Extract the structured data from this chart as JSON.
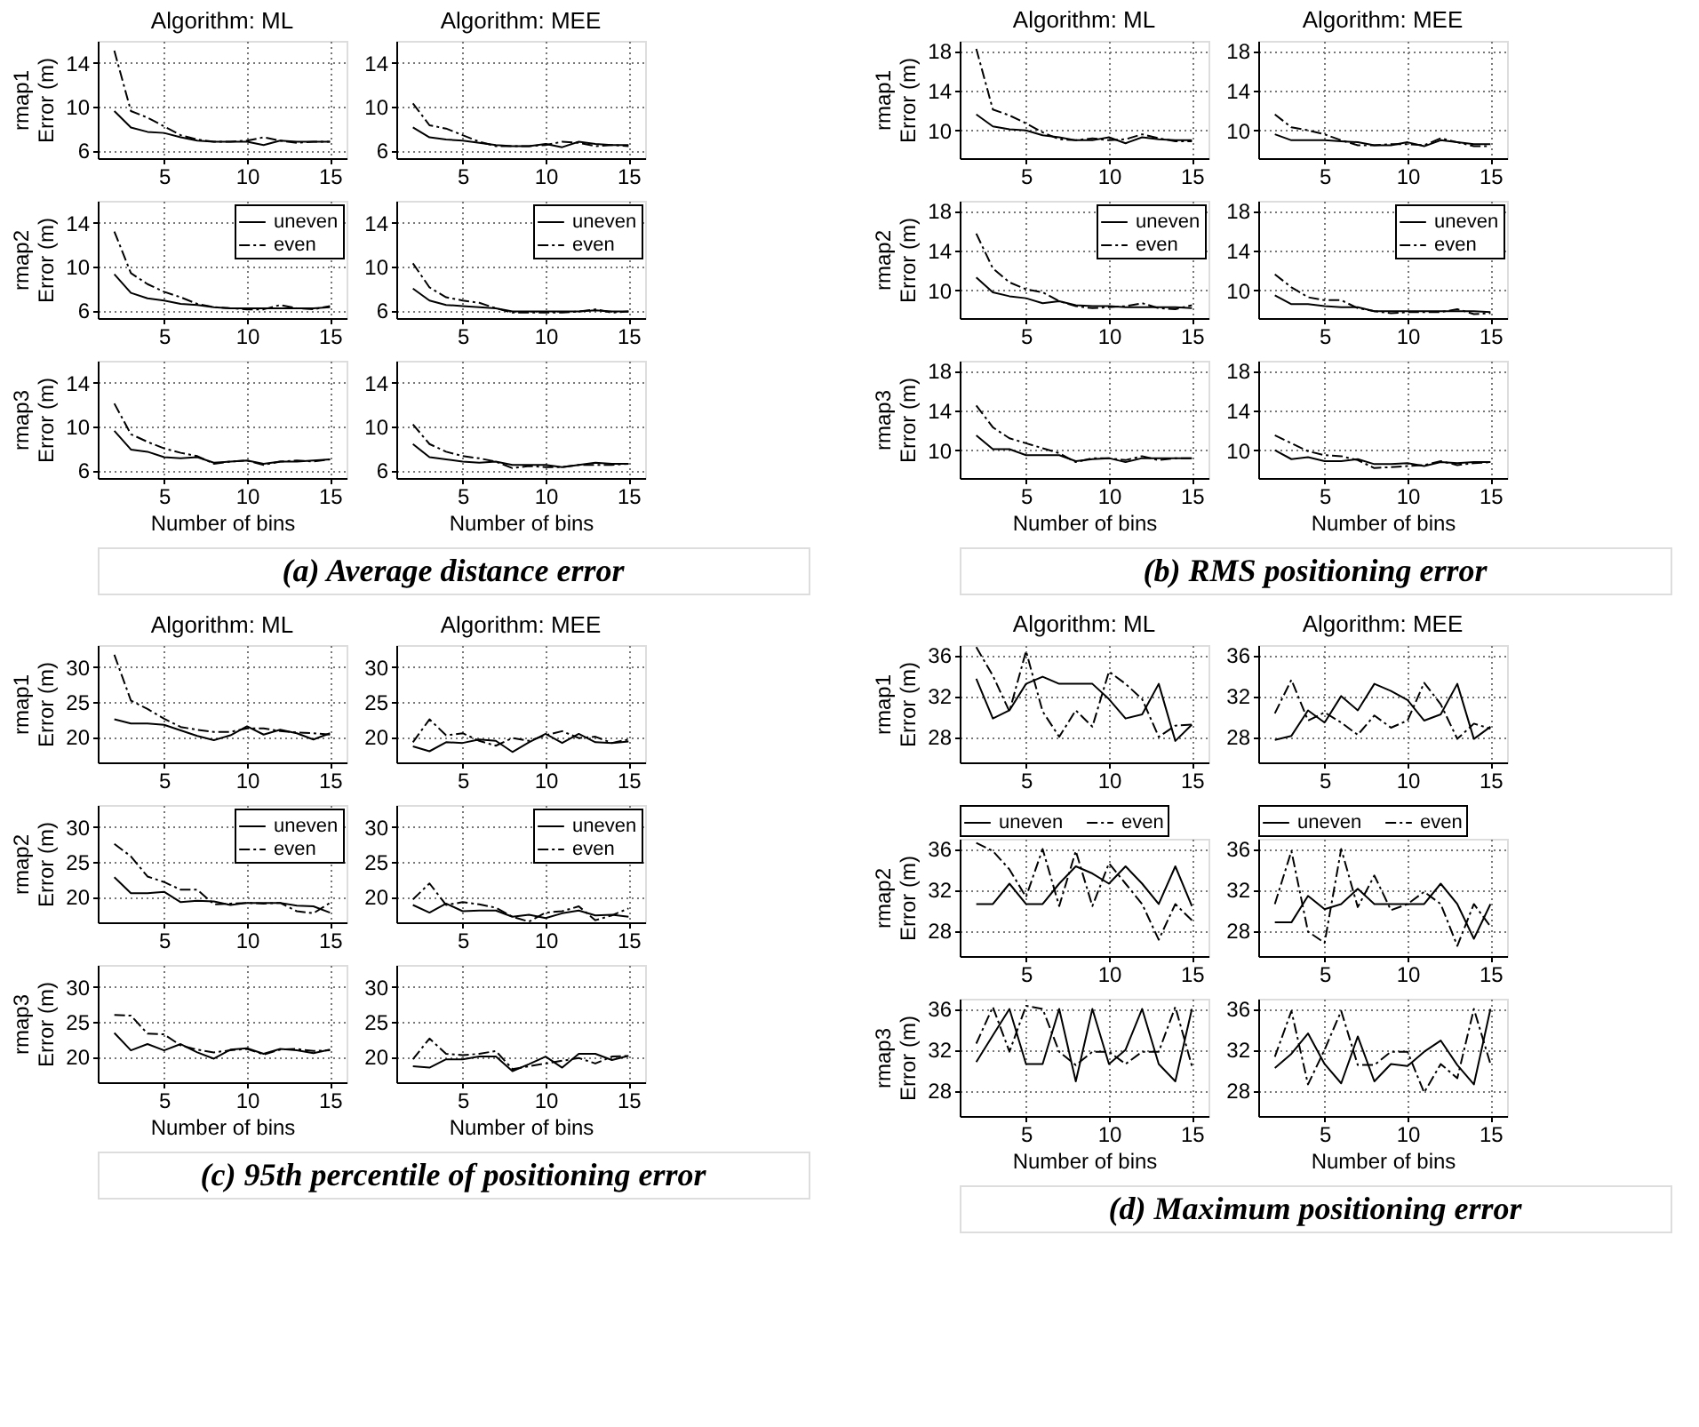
{
  "chart_data": [
    {
      "type": "line",
      "title": "Algorithm: ML",
      "ylabel": "rmap1\nError (m)",
      "x": [
        2,
        3,
        4,
        5,
        6,
        7,
        8,
        9,
        10,
        11,
        12,
        13,
        14,
        15
      ],
      "xlim": [
        1,
        16
      ],
      "xticks": [
        5,
        10,
        15
      ],
      "ylim": [
        5.3,
        16
      ],
      "yticks": [
        6,
        10,
        14
      ],
      "grid": true,
      "legend": false,
      "series": [
        {
          "color": "#000000",
          "line_style": "solid",
          "values": [
            9.6,
            8.1,
            7.7,
            7.6,
            7.2,
            6.9,
            6.8,
            6.8,
            6.8,
            6.5,
            6.9,
            6.8,
            6.8,
            6.8
          ]
        },
        {
          "color": "#000000",
          "line_style": "dashed",
          "values": [
            15.1,
            9.6,
            9.0,
            8.2,
            7.4,
            7.0,
            6.8,
            6.8,
            6.9,
            7.2,
            6.9,
            6.7,
            6.8,
            6.8
          ]
        }
      ]
    },
    {
      "type": "line",
      "title": "Algorithm: MEE",
      "x": [
        2,
        3,
        4,
        5,
        6,
        7,
        8,
        9,
        10,
        11,
        12,
        13,
        14,
        15
      ],
      "xlim": [
        1,
        16
      ],
      "xticks": [
        5,
        10,
        15
      ],
      "ylim": [
        5.3,
        16
      ],
      "yticks": [
        6,
        10,
        14
      ],
      "grid": true,
      "legend": false,
      "series": [
        {
          "color": "#000000",
          "line_style": "solid",
          "values": [
            8.1,
            7.2,
            7.0,
            6.9,
            6.7,
            6.5,
            6.4,
            6.4,
            6.6,
            6.3,
            6.8,
            6.6,
            6.5,
            6.5
          ]
        },
        {
          "color": "#000000",
          "line_style": "dashed",
          "values": [
            10.3,
            8.3,
            8.0,
            7.4,
            6.8,
            6.4,
            6.4,
            6.4,
            6.5,
            6.8,
            6.7,
            6.4,
            6.5,
            6.4
          ]
        }
      ]
    },
    {
      "type": "line",
      "ylabel": "rmap2\nError (m)",
      "x": [
        2,
        3,
        4,
        5,
        6,
        7,
        8,
        9,
        10,
        11,
        12,
        13,
        14,
        15
      ],
      "xlim": [
        1,
        16
      ],
      "xticks": [
        5,
        10,
        15
      ],
      "ylim": [
        5.3,
        16
      ],
      "yticks": [
        6,
        10,
        14
      ],
      "grid": true,
      "legend": "top right",
      "series": [
        {
          "name": "uneven",
          "color": "#000000",
          "line_style": "solid",
          "values": [
            9.3,
            7.6,
            7.1,
            6.9,
            6.6,
            6.5,
            6.3,
            6.2,
            6.2,
            6.2,
            6.2,
            6.2,
            6.2,
            6.3
          ]
        },
        {
          "name": "even",
          "color": "#000000",
          "line_style": "dashed",
          "values": [
            13.2,
            9.4,
            8.4,
            7.7,
            7.2,
            6.6,
            6.3,
            6.2,
            6.1,
            6.1,
            6.5,
            6.2,
            6.1,
            6.4
          ]
        }
      ]
    },
    {
      "type": "line",
      "x": [
        2,
        3,
        4,
        5,
        6,
        7,
        8,
        9,
        10,
        11,
        12,
        13,
        14,
        15
      ],
      "xlim": [
        1,
        16
      ],
      "xticks": [
        5,
        10,
        15
      ],
      "ylim": [
        5.3,
        16
      ],
      "yticks": [
        6,
        10,
        14
      ],
      "grid": true,
      "legend": "top right",
      "series": [
        {
          "name": "uneven",
          "color": "#000000",
          "line_style": "solid",
          "values": [
            8.0,
            6.9,
            6.5,
            6.4,
            6.3,
            6.2,
            5.9,
            5.9,
            5.9,
            5.9,
            5.9,
            6.0,
            5.9,
            5.9
          ]
        },
        {
          "name": "even",
          "color": "#000000",
          "line_style": "dashed",
          "values": [
            10.3,
            8.1,
            7.2,
            6.9,
            6.7,
            6.2,
            5.8,
            5.8,
            5.8,
            5.8,
            5.9,
            6.1,
            5.8,
            5.9
          ]
        }
      ]
    },
    {
      "type": "line",
      "ylabel": "rmap3\nError (m)",
      "xlabel": "Number of bins",
      "annotations": [
        "(a) Average distance error"
      ],
      "x": [
        2,
        3,
        4,
        5,
        6,
        7,
        8,
        9,
        10,
        11,
        12,
        13,
        14,
        15
      ],
      "xlim": [
        1,
        16
      ],
      "xticks": [
        5,
        10,
        15
      ],
      "ylim": [
        5.3,
        16
      ],
      "yticks": [
        6,
        10,
        14
      ],
      "grid": true,
      "legend": false,
      "series": [
        {
          "color": "#000000",
          "line_style": "solid",
          "values": [
            9.6,
            7.9,
            7.7,
            7.2,
            7.1,
            7.2,
            6.7,
            6.8,
            6.9,
            6.6,
            6.8,
            6.8,
            6.9,
            7.0
          ]
        },
        {
          "color": "#000000",
          "line_style": "dashed",
          "values": [
            12.1,
            9.3,
            8.6,
            8.0,
            7.6,
            7.3,
            6.6,
            6.8,
            6.9,
            6.5,
            6.8,
            6.9,
            6.8,
            7.0
          ]
        }
      ]
    },
    {
      "type": "line",
      "xlabel": "Number of bins",
      "x": [
        2,
        3,
        4,
        5,
        6,
        7,
        8,
        9,
        10,
        11,
        12,
        13,
        14,
        15
      ],
      "xlim": [
        1,
        16
      ],
      "xticks": [
        5,
        10,
        15
      ],
      "ylim": [
        5.3,
        16
      ],
      "yticks": [
        6,
        10,
        14
      ],
      "grid": true,
      "legend": false,
      "series": [
        {
          "color": "#000000",
          "line_style": "solid",
          "values": [
            8.4,
            7.2,
            7.0,
            6.8,
            6.7,
            6.8,
            6.5,
            6.5,
            6.5,
            6.3,
            6.5,
            6.7,
            6.6,
            6.6
          ]
        },
        {
          "color": "#000000",
          "line_style": "dashed",
          "values": [
            10.2,
            8.4,
            7.7,
            7.3,
            7.1,
            6.8,
            6.2,
            6.4,
            6.3,
            6.3,
            6.5,
            6.5,
            6.5,
            6.6
          ]
        }
      ]
    },
    {
      "type": "line",
      "title": "Algorithm: ML",
      "ylabel": "rmap1\nError (m)",
      "x": [
        2,
        3,
        4,
        5,
        6,
        7,
        8,
        9,
        10,
        11,
        12,
        13,
        14,
        15
      ],
      "xlim": [
        1,
        16
      ],
      "xticks": [
        5,
        10,
        15
      ],
      "ylim": [
        7.2,
        19
      ],
      "yticks": [
        10,
        14,
        18
      ],
      "grid": true,
      "legend": false,
      "series": [
        {
          "color": "#000000",
          "line_style": "solid",
          "values": [
            11.6,
            10.4,
            10.1,
            10.0,
            9.5,
            9.3,
            9.0,
            9.0,
            9.3,
            8.7,
            9.3,
            9.1,
            9.0,
            9.0
          ]
        },
        {
          "color": "#000000",
          "line_style": "dashed",
          "values": [
            18.2,
            12.1,
            11.5,
            10.7,
            9.8,
            9.1,
            9.0,
            9.2,
            9.0,
            9.1,
            9.6,
            9.2,
            8.9,
            8.9
          ]
        }
      ]
    },
    {
      "type": "line",
      "title": "Algorithm: MEE",
      "x": [
        2,
        3,
        4,
        5,
        6,
        7,
        8,
        9,
        10,
        11,
        12,
        13,
        14,
        15
      ],
      "xlim": [
        1,
        16
      ],
      "xticks": [
        5,
        10,
        15
      ],
      "ylim": [
        7.2,
        19
      ],
      "yticks": [
        10,
        14,
        18
      ],
      "grid": true,
      "legend": false,
      "series": [
        {
          "color": "#000000",
          "line_style": "solid",
          "values": [
            9.6,
            9.0,
            9.0,
            9.0,
            8.9,
            8.8,
            8.5,
            8.5,
            8.8,
            8.4,
            9.0,
            8.8,
            8.6,
            8.6
          ]
        },
        {
          "color": "#000000",
          "line_style": "dashed",
          "values": [
            11.6,
            10.3,
            10.0,
            9.6,
            9.0,
            8.5,
            8.5,
            8.6,
            8.6,
            8.5,
            9.2,
            8.8,
            8.4,
            8.4
          ]
        }
      ]
    },
    {
      "type": "line",
      "ylabel": "rmap2\nError (m)",
      "x": [
        2,
        3,
        4,
        5,
        6,
        7,
        8,
        9,
        10,
        11,
        12,
        13,
        14,
        15
      ],
      "xlim": [
        1,
        16
      ],
      "xticks": [
        5,
        10,
        15
      ],
      "ylim": [
        7.2,
        19
      ],
      "yticks": [
        10,
        14,
        18
      ],
      "grid": true,
      "legend": "top right",
      "series": [
        {
          "name": "uneven",
          "color": "#000000",
          "line_style": "solid",
          "values": [
            11.3,
            9.8,
            9.4,
            9.2,
            8.7,
            8.9,
            8.5,
            8.4,
            8.4,
            8.3,
            8.3,
            8.3,
            8.3,
            8.2
          ]
        },
        {
          "name": "even",
          "color": "#000000",
          "line_style": "dashed",
          "values": [
            15.7,
            12.2,
            10.8,
            10.1,
            9.8,
            8.9,
            8.4,
            8.2,
            8.3,
            8.4,
            8.7,
            8.2,
            8.1,
            8.5
          ]
        }
      ]
    },
    {
      "type": "line",
      "x": [
        2,
        3,
        4,
        5,
        6,
        7,
        8,
        9,
        10,
        11,
        12,
        13,
        14,
        15
      ],
      "xlim": [
        1,
        16
      ],
      "xticks": [
        5,
        10,
        15
      ],
      "ylim": [
        7.2,
        19
      ],
      "yticks": [
        10,
        14,
        18
      ],
      "grid": true,
      "legend": "top right",
      "series": [
        {
          "name": "uneven",
          "color": "#000000",
          "line_style": "solid",
          "values": [
            9.5,
            8.6,
            8.6,
            8.4,
            8.3,
            8.3,
            7.9,
            7.9,
            7.9,
            7.9,
            7.9,
            7.9,
            7.9,
            7.8
          ]
        },
        {
          "name": "even",
          "color": "#000000",
          "line_style": "dashed",
          "values": [
            11.6,
            10.3,
            9.3,
            9.0,
            9.0,
            8.2,
            7.9,
            7.7,
            7.8,
            7.8,
            7.8,
            8.1,
            7.6,
            7.7
          ]
        }
      ]
    },
    {
      "type": "line",
      "ylabel": "rmap3\nError (m)",
      "xlabel": "Number of bins",
      "annotations": [
        "(b) RMS positioning error"
      ],
      "x": [
        2,
        3,
        4,
        5,
        6,
        7,
        8,
        9,
        10,
        11,
        12,
        13,
        14,
        15
      ],
      "xlim": [
        1,
        16
      ],
      "xticks": [
        5,
        10,
        15
      ],
      "ylim": [
        7.2,
        19
      ],
      "yticks": [
        10,
        14,
        18
      ],
      "grid": true,
      "legend": false,
      "series": [
        {
          "color": "#000000",
          "line_style": "solid",
          "values": [
            11.5,
            10.1,
            10.1,
            9.5,
            9.5,
            9.5,
            8.9,
            9.1,
            9.2,
            8.8,
            9.2,
            9.2,
            9.2,
            9.2
          ]
        },
        {
          "color": "#000000",
          "line_style": "dashed",
          "values": [
            14.5,
            12.3,
            11.2,
            10.7,
            10.2,
            9.7,
            8.8,
            9.2,
            9.2,
            9.0,
            9.4,
            9.0,
            9.2,
            9.2
          ]
        }
      ]
    },
    {
      "type": "line",
      "xlabel": "Number of bins",
      "x": [
        2,
        3,
        4,
        5,
        6,
        7,
        8,
        9,
        10,
        11,
        12,
        13,
        14,
        15
      ],
      "xlim": [
        1,
        16
      ],
      "xticks": [
        5,
        10,
        15
      ],
      "ylim": [
        7.2,
        19
      ],
      "yticks": [
        10,
        14,
        18
      ],
      "grid": true,
      "legend": false,
      "series": [
        {
          "color": "#000000",
          "line_style": "solid",
          "values": [
            10.0,
            9.1,
            9.3,
            8.9,
            8.9,
            9.1,
            8.6,
            8.6,
            8.7,
            8.4,
            8.8,
            8.7,
            8.8,
            8.8
          ]
        },
        {
          "color": "#000000",
          "line_style": "dashed",
          "values": [
            11.5,
            10.7,
            9.9,
            9.5,
            9.4,
            9.0,
            8.2,
            8.3,
            8.4,
            8.5,
            8.9,
            8.5,
            8.7,
            8.8
          ]
        }
      ]
    },
    {
      "type": "line",
      "title": "Algorithm: ML",
      "ylabel": "rmap1\nError (m)",
      "x": [
        2,
        3,
        4,
        5,
        6,
        7,
        8,
        9,
        10,
        11,
        12,
        13,
        14,
        15
      ],
      "xlim": [
        1,
        16
      ],
      "xticks": [
        5,
        10,
        15
      ],
      "ylim": [
        16.3,
        33.2
      ],
      "yticks": [
        20,
        25,
        30
      ],
      "grid": true,
      "legend": false,
      "series": [
        {
          "color": "#000000",
          "line_style": "solid",
          "values": [
            22.5,
            21.9,
            21.9,
            21.7,
            20.9,
            20.1,
            19.5,
            20.2,
            21.5,
            20.3,
            21.0,
            20.5,
            19.6,
            20.5
          ]
        },
        {
          "color": "#000000",
          "line_style": "dashed",
          "values": [
            31.8,
            25.2,
            24.0,
            22.6,
            21.4,
            21.0,
            20.7,
            20.7,
            21.2,
            21.2,
            20.8,
            20.6,
            20.5,
            20.3
          ]
        }
      ]
    },
    {
      "type": "line",
      "title": "Algorithm: MEE",
      "x": [
        2,
        3,
        4,
        5,
        6,
        7,
        8,
        9,
        10,
        11,
        12,
        13,
        14,
        15
      ],
      "xlim": [
        1,
        16
      ],
      "xticks": [
        5,
        10,
        15
      ],
      "ylim": [
        16.3,
        33.2
      ],
      "yticks": [
        20,
        25,
        30
      ],
      "grid": true,
      "legend": false,
      "series": [
        {
          "color": "#000000",
          "line_style": "solid",
          "values": [
            18.6,
            17.9,
            19.2,
            19.1,
            19.6,
            19.4,
            17.8,
            19.2,
            20.4,
            19.1,
            20.4,
            19.2,
            19.1,
            19.3
          ]
        },
        {
          "color": "#000000",
          "line_style": "dashed",
          "values": [
            19.2,
            22.5,
            20.2,
            20.5,
            19.4,
            18.7,
            19.8,
            19.4,
            20.2,
            20.8,
            19.8,
            20.0,
            19.1,
            19.6
          ]
        }
      ]
    },
    {
      "type": "line",
      "ylabel": "rmap2\nError (m)",
      "x": [
        2,
        3,
        4,
        5,
        6,
        7,
        8,
        9,
        10,
        11,
        12,
        13,
        14,
        15
      ],
      "xlim": [
        1,
        16
      ],
      "xticks": [
        5,
        10,
        15
      ],
      "ylim": [
        16.3,
        33.2
      ],
      "yticks": [
        20,
        25,
        30
      ],
      "grid": true,
      "legend": "top right",
      "series": [
        {
          "name": "uneven",
          "color": "#000000",
          "line_style": "solid",
          "values": [
            22.8,
            20.5,
            20.5,
            20.7,
            19.2,
            19.4,
            19.3,
            18.8,
            19.1,
            19.1,
            19.1,
            18.7,
            18.6,
            17.7
          ]
        },
        {
          "name": "even",
          "color": "#000000",
          "line_style": "dashed",
          "values": [
            27.6,
            25.8,
            22.9,
            22.1,
            21.0,
            21.0,
            18.9,
            19.0,
            19.1,
            19.0,
            19.1,
            17.9,
            17.6,
            19.1
          ]
        }
      ]
    },
    {
      "type": "line",
      "x": [
        2,
        3,
        4,
        5,
        6,
        7,
        8,
        9,
        10,
        11,
        12,
        13,
        14,
        15
      ],
      "xlim": [
        1,
        16
      ],
      "xticks": [
        5,
        10,
        15
      ],
      "ylim": [
        16.3,
        33.2
      ],
      "yticks": [
        20,
        25,
        30
      ],
      "grid": true,
      "legend": "top right",
      "series": [
        {
          "name": "uneven",
          "color": "#000000",
          "line_style": "solid",
          "values": [
            18.8,
            17.7,
            19.0,
            17.9,
            18.0,
            18.0,
            17.1,
            17.4,
            16.9,
            17.6,
            18.0,
            17.3,
            17.4,
            17.1
          ]
        },
        {
          "name": "even",
          "color": "#000000",
          "line_style": "dashed",
          "values": [
            19.6,
            21.9,
            18.8,
            19.2,
            18.9,
            18.4,
            17.1,
            16.4,
            17.7,
            17.9,
            18.6,
            16.6,
            17.3,
            18.3
          ]
        }
      ]
    },
    {
      "type": "line",
      "ylabel": "rmap3\nError (m)",
      "xlabel": "Number of bins",
      "annotations": [
        "(c) 95th percentile of positioning error"
      ],
      "x": [
        2,
        3,
        4,
        5,
        6,
        7,
        8,
        9,
        10,
        11,
        12,
        13,
        14,
        15
      ],
      "xlim": [
        1,
        16
      ],
      "xticks": [
        5,
        10,
        15
      ],
      "ylim": [
        16.3,
        33.2
      ],
      "yticks": [
        20,
        25,
        30
      ],
      "grid": true,
      "legend": false,
      "series": [
        {
          "color": "#000000",
          "line_style": "solid",
          "values": [
            23.4,
            20.9,
            21.8,
            20.9,
            21.8,
            20.6,
            19.7,
            21.0,
            21.2,
            20.4,
            21.1,
            20.9,
            20.5,
            21.0
          ]
        },
        {
          "color": "#000000",
          "line_style": "dashed",
          "values": [
            26.0,
            25.9,
            23.3,
            23.2,
            21.6,
            21.0,
            20.6,
            20.9,
            21.1,
            20.3,
            21.0,
            21.1,
            20.8,
            20.9
          ]
        }
      ]
    },
    {
      "type": "line",
      "xlabel": "Number of bins",
      "x": [
        2,
        3,
        4,
        5,
        6,
        7,
        8,
        9,
        10,
        11,
        12,
        13,
        14,
        15
      ],
      "xlim": [
        1,
        16
      ],
      "xticks": [
        5,
        10,
        15
      ],
      "ylim": [
        16.3,
        33.2
      ],
      "yticks": [
        20,
        25,
        30
      ],
      "grid": true,
      "legend": false,
      "series": [
        {
          "color": "#000000",
          "line_style": "solid",
          "values": [
            18.6,
            18.4,
            19.6,
            19.6,
            20.0,
            20.0,
            17.9,
            18.9,
            20.0,
            18.4,
            20.4,
            20.4,
            19.5,
            20.1
          ]
        },
        {
          "color": "#000000",
          "line_style": "dashed",
          "values": [
            19.6,
            22.6,
            20.4,
            20.2,
            20.4,
            20.8,
            18.2,
            18.6,
            19.0,
            19.4,
            19.8,
            19.0,
            20.0,
            20.1
          ]
        }
      ]
    },
    {
      "type": "line",
      "title": "Algorithm: ML",
      "ylabel": "rmap1\nError (m)",
      "x": [
        2,
        3,
        4,
        5,
        6,
        7,
        8,
        9,
        10,
        11,
        12,
        13,
        14,
        15
      ],
      "xlim": [
        1,
        16
      ],
      "xticks": [
        5,
        10,
        15
      ],
      "ylim": [
        25.5,
        37
      ],
      "yticks": [
        28,
        32,
        36
      ],
      "grid": true,
      "legend": false,
      "series": [
        {
          "color": "#000000",
          "line_style": "solid",
          "values": [
            33.7,
            29.8,
            30.6,
            33.2,
            33.9,
            33.2,
            33.2,
            33.2,
            31.7,
            29.8,
            30.2,
            33.2,
            27.6,
            29.2
          ]
        },
        {
          "color": "#000000",
          "line_style": "dashed",
          "values": [
            36.8,
            34.0,
            30.5,
            36.4,
            30.5,
            28.0,
            30.6,
            29.0,
            34.4,
            33.2,
            31.7,
            28.0,
            29.1,
            29.2
          ]
        }
      ]
    },
    {
      "type": "line",
      "title": "Algorithm: MEE",
      "x": [
        2,
        3,
        4,
        5,
        6,
        7,
        8,
        9,
        10,
        11,
        12,
        13,
        14,
        15
      ],
      "xlim": [
        1,
        16
      ],
      "xticks": [
        5,
        10,
        15
      ],
      "ylim": [
        25.5,
        37
      ],
      "yticks": [
        28,
        32,
        36
      ],
      "grid": true,
      "legend": false,
      "series": [
        {
          "color": "#000000",
          "line_style": "solid",
          "values": [
            27.7,
            28.1,
            30.6,
            29.4,
            32.0,
            30.6,
            33.2,
            32.5,
            31.6,
            29.6,
            30.2,
            33.2,
            27.8,
            29.0
          ]
        },
        {
          "color": "#000000",
          "line_style": "dashed",
          "values": [
            30.3,
            33.6,
            29.6,
            30.4,
            29.4,
            28.2,
            30.1,
            28.9,
            29.6,
            33.3,
            31.2,
            27.8,
            29.3,
            28.8
          ]
        }
      ]
    },
    {
      "type": "line",
      "ylabel": "rmap2\nError (m)",
      "x": [
        2,
        3,
        4,
        5,
        6,
        7,
        8,
        9,
        10,
        11,
        12,
        13,
        14,
        15
      ],
      "xlim": [
        1,
        16
      ],
      "xticks": [
        5,
        10,
        15
      ],
      "ylim": [
        25.5,
        37
      ],
      "yticks": [
        28,
        32,
        36
      ],
      "grid": true,
      "legend": "top",
      "series": [
        {
          "name": "uneven",
          "color": "#000000",
          "line_style": "solid",
          "values": [
            30.6,
            30.6,
            32.6,
            30.6,
            30.6,
            32.6,
            34.3,
            33.6,
            32.6,
            34.3,
            32.6,
            30.6,
            34.3,
            30.4
          ]
        },
        {
          "name": "even",
          "color": "#000000",
          "line_style": "dashed",
          "values": [
            36.6,
            35.8,
            34.0,
            31.3,
            36.0,
            30.4,
            35.8,
            30.4,
            34.6,
            32.6,
            30.6,
            27.1,
            30.6,
            29.0
          ]
        }
      ]
    },
    {
      "type": "line",
      "x": [
        2,
        3,
        4,
        5,
        6,
        7,
        8,
        9,
        10,
        11,
        12,
        13,
        14,
        15
      ],
      "xlim": [
        1,
        16
      ],
      "xticks": [
        5,
        10,
        15
      ],
      "ylim": [
        25.5,
        37
      ],
      "yticks": [
        28,
        32,
        36
      ],
      "grid": true,
      "legend": "top",
      "series": [
        {
          "name": "uneven",
          "color": "#000000",
          "line_style": "solid",
          "values": [
            28.8,
            28.8,
            31.4,
            30.1,
            30.6,
            32.1,
            30.6,
            30.6,
            30.6,
            30.6,
            32.6,
            30.6,
            27.2,
            30.6
          ]
        },
        {
          "name": "even",
          "color": "#000000",
          "line_style": "dashed",
          "values": [
            30.6,
            35.8,
            27.9,
            26.8,
            36.0,
            30.3,
            33.4,
            30.0,
            30.6,
            31.8,
            30.6,
            26.5,
            30.6,
            28.4
          ]
        }
      ]
    },
    {
      "type": "line",
      "ylabel": "rmap3\nError (m)",
      "xlabel": "Number of bins",
      "annotations": [
        "(d) Maximum positioning error"
      ],
      "x": [
        2,
        3,
        4,
        5,
        6,
        7,
        8,
        9,
        10,
        11,
        12,
        13,
        14,
        15
      ],
      "xlim": [
        1,
        16
      ],
      "xticks": [
        5,
        10,
        15
      ],
      "ylim": [
        25.5,
        37
      ],
      "yticks": [
        28,
        32,
        36
      ],
      "grid": true,
      "legend": false,
      "series": [
        {
          "color": "#000000",
          "line_style": "solid",
          "values": [
            30.8,
            33.4,
            36.0,
            30.6,
            30.6,
            36.0,
            28.9,
            36.0,
            30.6,
            32.0,
            36.0,
            30.6,
            28.9,
            36.0
          ]
        },
        {
          "color": "#000000",
          "line_style": "dashed",
          "values": [
            32.6,
            36.2,
            31.8,
            36.3,
            36.0,
            31.8,
            30.5,
            31.8,
            31.8,
            30.6,
            31.8,
            31.8,
            36.2,
            30.4
          ]
        }
      ]
    },
    {
      "type": "line",
      "xlabel": "Number of bins",
      "x": [
        2,
        3,
        4,
        5,
        6,
        7,
        8,
        9,
        10,
        11,
        12,
        13,
        14,
        15
      ],
      "xlim": [
        1,
        16
      ],
      "xticks": [
        5,
        10,
        15
      ],
      "ylim": [
        25.5,
        37
      ],
      "yticks": [
        28,
        32,
        36
      ],
      "grid": true,
      "legend": false,
      "series": [
        {
          "color": "#000000",
          "line_style": "solid",
          "values": [
            30.2,
            31.6,
            33.6,
            30.6,
            28.7,
            33.3,
            28.9,
            30.6,
            30.4,
            31.8,
            32.9,
            30.5,
            28.6,
            36.0
          ]
        },
        {
          "color": "#000000",
          "line_style": "dashed",
          "values": [
            31.3,
            35.8,
            28.6,
            32.0,
            35.8,
            30.5,
            30.5,
            31.8,
            31.8,
            27.8,
            30.6,
            29.2,
            36.0,
            30.6
          ]
        }
      ]
    }
  ]
}
